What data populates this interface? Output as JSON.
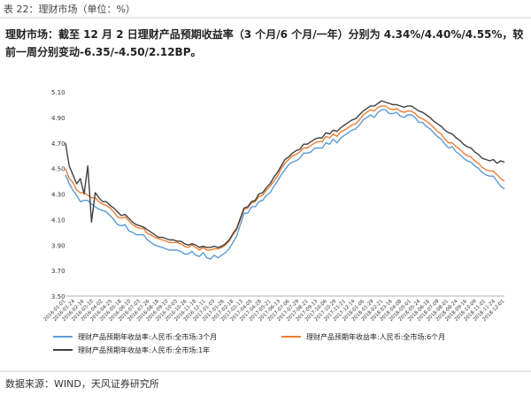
{
  "header": {
    "table_title": "表 22：理财市场（单位：%）",
    "summary": "理财市场：截至 12 月 2 日理财产品预期收益率（3 个月/6 个月/一年）分别为 4.34%/4.40%/4.55%，较前一周分别变动-6.35/-4.50/2.12BP。"
  },
  "footer": {
    "source": "数据来源：WIND，天风证券研究所"
  },
  "chart_data": {
    "type": "line",
    "title": "",
    "xlabel": "",
    "ylabel": "",
    "ylim": [
      3.5,
      5.1
    ],
    "yticks": [
      "5.10",
      "4.90",
      "4.70",
      "4.50",
      "4.30",
      "4.10",
      "3.90",
      "3.70",
      "3.50"
    ],
    "x_tick_labels": [
      "2016-01-01",
      "2016-01-24",
      "2016-02-16",
      "2016-03-10",
      "2016-04-02",
      "2016-04-25",
      "2016-05-18",
      "2016-06-10",
      "2016-07-03",
      "2016-07-26",
      "2016-08-18",
      "2016-09-10",
      "2016-10-03",
      "2016-10-26",
      "2016-11-18",
      "2016-12-11",
      "2017-01-03",
      "2017-01-26",
      "2017-02-18",
      "2017-03-13",
      "2017-04-05",
      "2017-04-28",
      "2017-05-21",
      "2017-06-13",
      "2017-07-06",
      "2017-07-29",
      "2017-08-21",
      "2017-09-13",
      "2017-10-06",
      "2017-10-29",
      "2017-11-21",
      "2017-12-14",
      "2018-01-06",
      "2018-01-29",
      "2018-02-21",
      "2018-03-16",
      "2018-04-08",
      "2018-05-01",
      "2018-05-24",
      "2018-06-16",
      "2018-07-09",
      "2018-08-01",
      "2018-08-24",
      "2018-09-16",
      "2018-10-09",
      "2018-11-01",
      "2018-11-24",
      "2018-12-01"
    ],
    "grid": false,
    "legend_position": "bottom",
    "series": [
      {
        "name": "理财产品预期年收益率:人民币:全市场:3个月",
        "color": "#5b9bd5",
        "values": [
          4.45,
          4.38,
          4.33,
          4.29,
          4.24,
          4.25,
          4.25,
          4.22,
          4.2,
          4.18,
          4.17,
          4.16,
          4.13,
          4.1,
          4.06,
          4.05,
          4.06,
          4.01,
          4.0,
          3.98,
          3.98,
          3.98,
          3.94,
          3.92,
          3.9,
          3.89,
          3.88,
          3.87,
          3.86,
          3.86,
          3.86,
          3.85,
          3.83,
          3.83,
          3.85,
          3.82,
          3.81,
          3.84,
          3.8,
          3.79,
          3.82,
          3.8,
          3.82,
          3.84,
          3.87,
          3.92,
          3.97,
          4.06,
          4.15,
          4.15,
          4.2,
          4.2,
          4.24,
          4.25,
          4.29,
          4.31,
          4.36,
          4.4,
          4.45,
          4.49,
          4.53,
          4.55,
          4.56,
          4.58,
          4.62,
          4.62,
          4.63,
          4.66,
          4.66,
          4.66,
          4.7,
          4.69,
          4.73,
          4.7,
          4.74,
          4.76,
          4.78,
          4.8,
          4.81,
          4.84,
          4.88,
          4.9,
          4.92,
          4.9,
          4.94,
          4.96,
          4.96,
          4.93,
          4.93,
          4.94,
          4.91,
          4.9,
          4.92,
          4.92,
          4.9,
          4.86,
          4.86,
          4.83,
          4.81,
          4.78,
          4.75,
          4.73,
          4.69,
          4.66,
          4.67,
          4.63,
          4.61,
          4.58,
          4.56,
          4.55,
          4.52,
          4.5,
          4.47,
          4.45,
          4.44,
          4.44,
          4.4,
          4.36,
          4.34
        ]
      },
      {
        "name": "理财产品预期年收益率:人民币:全市场:6个月",
        "color": "#ed7d31",
        "values": [
          4.5,
          4.42,
          4.39,
          4.33,
          4.31,
          4.31,
          4.29,
          4.27,
          4.27,
          4.24,
          4.22,
          4.21,
          4.19,
          4.16,
          4.12,
          4.11,
          4.12,
          4.09,
          4.06,
          4.04,
          4.03,
          4.03,
          3.99,
          3.98,
          3.96,
          3.95,
          3.94,
          3.93,
          3.92,
          3.92,
          3.92,
          3.91,
          3.89,
          3.88,
          3.9,
          3.88,
          3.86,
          3.88,
          3.86,
          3.86,
          3.87,
          3.87,
          3.88,
          3.9,
          3.93,
          3.98,
          4.02,
          4.1,
          4.18,
          4.19,
          4.23,
          4.24,
          4.28,
          4.29,
          4.33,
          4.36,
          4.4,
          4.44,
          4.5,
          4.54,
          4.57,
          4.6,
          4.61,
          4.63,
          4.66,
          4.66,
          4.68,
          4.7,
          4.71,
          4.71,
          4.75,
          4.74,
          4.77,
          4.75,
          4.79,
          4.8,
          4.82,
          4.84,
          4.85,
          4.88,
          4.92,
          4.94,
          4.96,
          4.95,
          4.98,
          4.99,
          4.99,
          4.97,
          4.96,
          4.97,
          4.95,
          4.94,
          4.95,
          4.95,
          4.93,
          4.9,
          4.89,
          4.87,
          4.85,
          4.82,
          4.79,
          4.77,
          4.73,
          4.7,
          4.7,
          4.67,
          4.65,
          4.62,
          4.6,
          4.59,
          4.56,
          4.54,
          4.51,
          4.49,
          4.48,
          4.48,
          4.45,
          4.42,
          4.4
        ]
      },
      {
        "name": "理财产品预期年收益率:人民币:全市场:1年",
        "color": "#404040",
        "values": [
          4.7,
          4.52,
          4.45,
          4.38,
          4.42,
          4.3,
          4.52,
          4.08,
          4.31,
          4.27,
          4.24,
          4.24,
          4.21,
          4.19,
          4.16,
          4.13,
          4.14,
          4.11,
          4.08,
          4.06,
          4.05,
          4.04,
          4.02,
          4.0,
          3.98,
          3.96,
          3.96,
          3.95,
          3.94,
          3.94,
          3.93,
          3.93,
          3.91,
          3.9,
          3.91,
          3.9,
          3.88,
          3.89,
          3.88,
          3.88,
          3.89,
          3.88,
          3.89,
          3.91,
          3.94,
          3.99,
          4.03,
          4.11,
          4.19,
          4.2,
          4.24,
          4.25,
          4.3,
          4.31,
          4.35,
          4.38,
          4.43,
          4.47,
          4.52,
          4.57,
          4.59,
          4.62,
          4.64,
          4.65,
          4.69,
          4.69,
          4.71,
          4.73,
          4.74,
          4.74,
          4.78,
          4.77,
          4.8,
          4.79,
          4.82,
          4.84,
          4.86,
          4.88,
          4.89,
          4.92,
          4.95,
          4.97,
          4.99,
          4.99,
          5.01,
          5.03,
          5.02,
          5.01,
          5.0,
          5.0,
          4.99,
          4.98,
          4.99,
          4.99,
          4.97,
          4.95,
          4.94,
          4.92,
          4.9,
          4.87,
          4.85,
          4.83,
          4.8,
          4.78,
          4.77,
          4.74,
          4.72,
          4.69,
          4.67,
          4.66,
          4.63,
          4.61,
          4.58,
          4.57,
          4.56,
          4.57,
          4.54,
          4.56,
          4.55
        ]
      }
    ]
  }
}
